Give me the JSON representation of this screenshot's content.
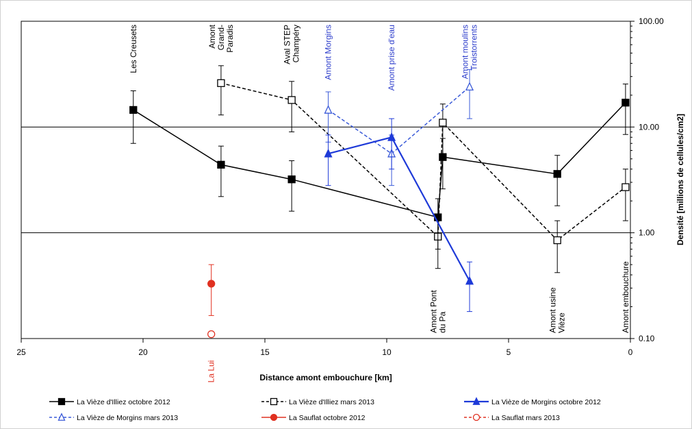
{
  "chart_data": {
    "type": "line",
    "xlabel": "Distance amont embouchure [km]",
    "ylabel": "Densité [millions de cellules/cm2]",
    "xlim": [
      25,
      0
    ],
    "x_reversed": true,
    "ylim": [
      0.1,
      100
    ],
    "y_scale": "log",
    "x_ticks": [
      "25",
      "20",
      "15",
      "10",
      "5",
      "0"
    ],
    "y_ticks": [
      "100.00",
      "10.00",
      "1.00",
      "0.10"
    ],
    "grid": "horizontal lines at 1 and 10",
    "legend_position": "bottom",
    "site_labels": [
      {
        "text": [
          "Les Creusets"
        ],
        "x": 20.4,
        "color": "#000000",
        "pos": "top"
      },
      {
        "text": [
          "Amont",
          "Grand-",
          "Paradis"
        ],
        "x": 16.8,
        "color": "#000000",
        "pos": "top"
      },
      {
        "text": [
          "Aval STEP",
          "Champéry"
        ],
        "x": 13.9,
        "color": "#000000",
        "pos": "top"
      },
      {
        "text": [
          "Amont Morgins"
        ],
        "x": 12.4,
        "color": "#3040cc",
        "pos": "top"
      },
      {
        "text": [
          "Amont prise d'eau"
        ],
        "x": 9.8,
        "color": "#3040cc",
        "pos": "top"
      },
      {
        "text": [
          "Amont moulins",
          "Troistorrents"
        ],
        "x": 6.6,
        "color": "#3040cc",
        "pos": "top"
      },
      {
        "text": [
          "Amont Pont",
          "du Pa"
        ],
        "x": 7.9,
        "color": "#000000",
        "pos": "bottom"
      },
      {
        "text": [
          "Amont usine",
          "Vièze"
        ],
        "x": 3.0,
        "color": "#000000",
        "pos": "bottom"
      },
      {
        "text": [
          "Amont embouchure"
        ],
        "x": 0.2,
        "color": "#000000",
        "pos": "bottom"
      },
      {
        "text": [
          "La Lui"
        ],
        "x": 17.2,
        "color": "#e03020",
        "pos": "below-axis"
      }
    ],
    "series": [
      {
        "name": "La Vièze d'Illiez octobre 2012",
        "color": "#000000",
        "dash": "solid",
        "marker": "square",
        "filled": true,
        "x": [
          20.4,
          16.8,
          13.9,
          7.9,
          7.7,
          3.0,
          0.2
        ],
        "y": [
          14.5,
          4.4,
          3.2,
          1.4,
          5.2,
          3.6,
          17
        ],
        "err_low": [
          7,
          2.2,
          1.6,
          0.7,
          2.6,
          1.8,
          8.5
        ],
        "err_high": [
          22,
          6.6,
          4.8,
          2.1,
          7.8,
          5.4,
          25.5
        ]
      },
      {
        "name": "La Vièze d'Illiez mars 2013",
        "color": "#000000",
        "dash": "dashed",
        "marker": "square",
        "filled": false,
        "x": [
          16.8,
          13.9,
          7.9,
          7.7,
          3.0,
          0.2
        ],
        "y": [
          26,
          18,
          0.92,
          11,
          0.85,
          2.7
        ],
        "err_low": [
          13,
          9,
          0.46,
          5.5,
          0.42,
          1.3
        ],
        "err_high": [
          38,
          27,
          1.4,
          16.5,
          1.3,
          4.0
        ]
      },
      {
        "name": "La Vièze de Morgins octobre 2012",
        "color": "#1e3ad8",
        "dash": "solid",
        "marker": "triangle",
        "filled": true,
        "x": [
          12.4,
          9.8,
          6.6
        ],
        "y": [
          5.6,
          8,
          0.35
        ],
        "err_low": [
          2.8,
          4,
          0.18
        ],
        "err_high": [
          8.4,
          12,
          0.53
        ]
      },
      {
        "name": "La Vièze de Morgins mars 2013",
        "color": "#3a5ad8",
        "dash": "dashed",
        "marker": "triangle",
        "filled": false,
        "x": [
          12.4,
          9.8,
          6.6
        ],
        "y": [
          14.5,
          5.6,
          24
        ],
        "err_low": [
          7.2,
          2.8,
          12
        ],
        "err_high": [
          21.5,
          8.4,
          35
        ]
      },
      {
        "name": "La Sauflat octobre 2012",
        "color": "#e03020",
        "dash": "solid",
        "marker": "circle",
        "filled": true,
        "x": [
          17.2
        ],
        "y": [
          0.33
        ],
        "err_low": [
          0.165
        ],
        "err_high": [
          0.5
        ]
      },
      {
        "name": "La Sauflat mars 2013",
        "color": "#e03020",
        "dash": "dashed",
        "marker": "circle",
        "filled": false,
        "x": [
          17.2
        ],
        "y": [
          0.11
        ],
        "err_low": [],
        "err_high": []
      }
    ]
  }
}
